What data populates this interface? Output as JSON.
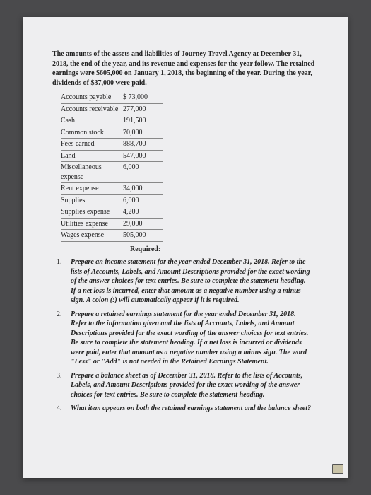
{
  "intro": "The amounts of the assets and liabilities of Journey Travel Agency at December 31, 2018, the end of the year, and its revenue and expenses for the year follow. The retained earnings were $605,000 on January 1, 2018, the beginning of the year. During the year, dividends of $37,000 were paid.",
  "accounts": [
    {
      "label": "Accounts payable",
      "value": "$ 73,000"
    },
    {
      "label": "Accounts receivable",
      "value": "277,000"
    },
    {
      "label": "Cash",
      "value": "191,500"
    },
    {
      "label": "Common stock",
      "value": "70,000"
    },
    {
      "label": "Fees earned",
      "value": "888,700"
    },
    {
      "label": "Land",
      "value": "547,000"
    },
    {
      "label": "Miscellaneous expense",
      "value": "6,000"
    },
    {
      "label": "Rent expense",
      "value": "34,000"
    },
    {
      "label": "Supplies",
      "value": "6,000"
    },
    {
      "label": "Supplies expense",
      "value": "4,200"
    },
    {
      "label": "Utilities expense",
      "value": "29,000"
    },
    {
      "label": "Wages expense",
      "value": "505,000"
    }
  ],
  "required_label": "Required:",
  "requirements": [
    {
      "num": "1.",
      "text": "Prepare an income statement for the year ended December 31, 2018. Refer to the lists of Accounts, Labels, and Amount Descriptions provided for the exact wording of the answer choices for text entries. Be sure to complete the statement heading. If a net loss is incurred, enter that amount as a negative number using a minus sign. A colon (:) will automatically appear if it is required."
    },
    {
      "num": "2.",
      "text": "Prepare a retained earnings statement for the year ended December 31, 2018. Refer to the information given and the lists of Accounts, Labels, and Amount Descriptions provided for the exact wording of the answer choices for text entries. Be sure to complete the statement heading. If a net loss is incurred or dividends were paid, enter that amount as a negative number using a minus sign. The word \"Less\" or \"Add\" is not needed in the Retained Earnings Statement."
    },
    {
      "num": "3.",
      "text": " Prepare a balance sheet as of December 31, 2018. Refer to the lists of Accounts, Labels, and Amount Descriptions provided for the exact wording of the answer choices for text entries. Be sure to complete the statement heading."
    },
    {
      "num": "4.",
      "text": "What item appears on both the retained earnings statement and the balance sheet?"
    }
  ]
}
